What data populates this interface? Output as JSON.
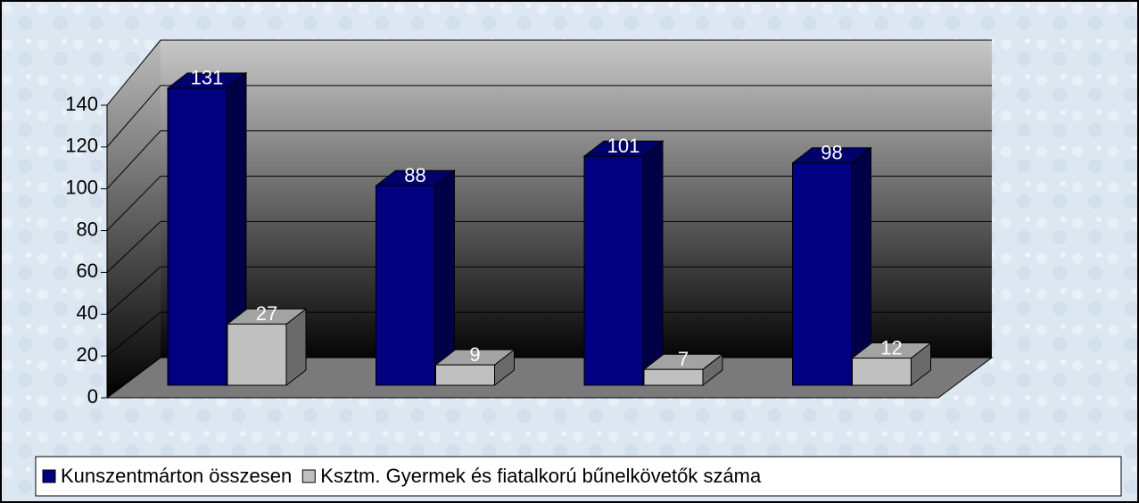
{
  "chart_data": {
    "type": "bar3d",
    "categories": [
      null,
      null,
      null,
      null
    ],
    "series": [
      {
        "name": "Kunszentmárton összesen",
        "color": "#000080",
        "values": [
          131,
          88,
          101,
          98
        ]
      },
      {
        "name": "Ksztm. Gyermek és fiatalkorú bűnelkövetők száma",
        "color": "#c0c0c0",
        "values": [
          27,
          9,
          7,
          12
        ]
      }
    ],
    "ylim": [
      0,
      140
    ],
    "yticks": [
      0,
      20,
      40,
      60,
      80,
      100,
      120,
      140
    ],
    "grid": true,
    "legend": "bottom"
  }
}
